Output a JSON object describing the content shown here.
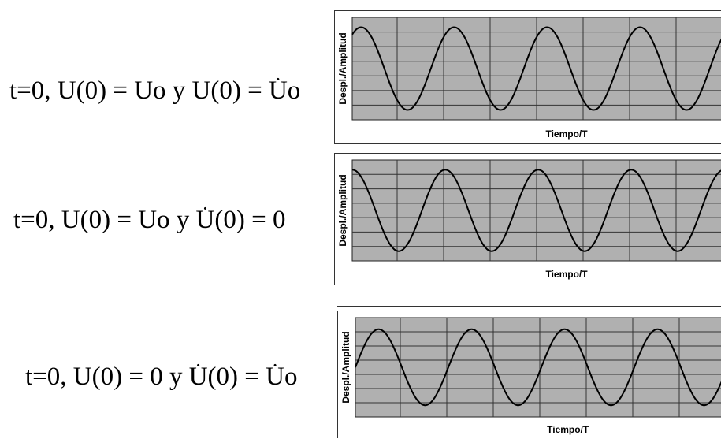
{
  "equations": [
    {
      "id": "eq1",
      "parts": [
        {
          "t": "t=0, U(0) = Uo  y U(0) = "
        },
        {
          "t": "U",
          "dot": true
        },
        {
          "t": "o"
        }
      ]
    },
    {
      "id": "eq2",
      "parts": [
        {
          "t": "t=0, U(0) = Uo  y "
        },
        {
          "t": "U",
          "dot": true
        },
        {
          "t": "(0) = 0"
        }
      ]
    },
    {
      "id": "eq3",
      "parts": [
        {
          "t": "t=0, U(0) = 0 y "
        },
        {
          "t": "U",
          "dot": true
        },
        {
          "t": "(0) = "
        },
        {
          "t": "U",
          "dot": true
        },
        {
          "t": "o"
        }
      ]
    }
  ],
  "chart_data": [
    {
      "type": "line",
      "ylabel": "Despl./Amplitud",
      "xlabel": "Tiempo/T",
      "grid": true,
      "background": "#b0b0b0",
      "line_color": "#000000",
      "xlim": [
        0,
        4
      ],
      "ylim": [
        -1,
        1
      ],
      "series": [
        {
          "function": "U(t)=Uo·cos(2πt/T − φ)",
          "amplitude": 0.95,
          "phase_rad": 0.6
        }
      ]
    },
    {
      "type": "line",
      "ylabel": "Despl./Amplitud",
      "xlabel": "Tiempo/T",
      "grid": true,
      "background": "#b0b0b0",
      "line_color": "#000000",
      "xlim": [
        0,
        4
      ],
      "ylim": [
        -1,
        1
      ],
      "series": [
        {
          "function": "U(t)=Uo·cos(2πt/T)",
          "amplitude": 0.95,
          "phase_rad": 0
        }
      ]
    },
    {
      "type": "line",
      "ylabel": "Despl./Amplitud",
      "xlabel": "Tiempo/T",
      "grid": true,
      "background": "#b0b0b0",
      "line_color": "#000000",
      "xlim": [
        0,
        4
      ],
      "ylim": [
        -1,
        1
      ],
      "series": [
        {
          "function": "U(t)=(Uo/ω)·sin(2πt/T)",
          "amplitude": 0.9,
          "phase_rad": 1.5708
        }
      ]
    }
  ]
}
